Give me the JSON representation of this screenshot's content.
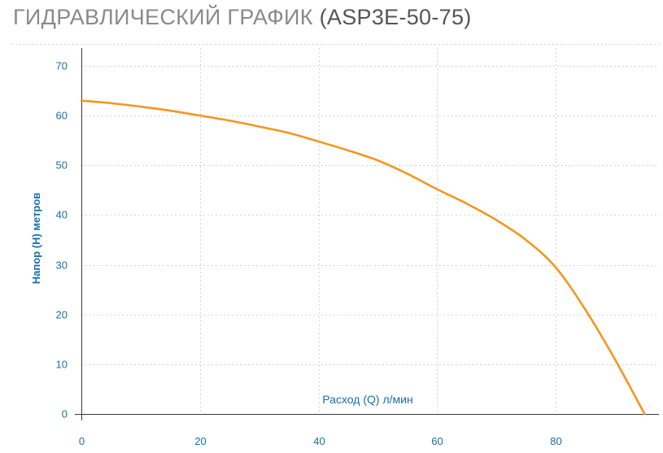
{
  "title": {
    "main": "ГИДРАВЛИЧЕСКИЙ ГРАФИК",
    "model": "(ASP3E-50-75)"
  },
  "colors": {
    "line": "#f5961e",
    "axis_text": "#1a6fa6",
    "grid": "#cfd5da",
    "title": "#8a8a8a"
  },
  "chart_data": {
    "type": "line",
    "xlabel": "Расход (Q) л/мин",
    "ylabel": "Напор (H) метров",
    "xlim": [
      0,
      97
    ],
    "ylim": [
      0,
      70
    ],
    "xticks": [
      0,
      20,
      40,
      60,
      80
    ],
    "yticks": [
      0,
      10,
      20,
      30,
      40,
      50,
      60,
      70
    ],
    "grid": true,
    "series": [
      {
        "x": [
          0,
          5,
          10,
          15,
          20,
          25,
          30,
          35,
          40,
          45,
          50,
          55,
          60,
          65,
          70,
          75,
          80,
          85,
          90,
          95
        ],
        "values": [
          63,
          62.5,
          61.8,
          61,
          60,
          59,
          57.8,
          56.5,
          54.8,
          53,
          51,
          48.3,
          45.2,
          42.3,
          39,
          35,
          29.5,
          21,
          11,
          0
        ]
      }
    ]
  }
}
